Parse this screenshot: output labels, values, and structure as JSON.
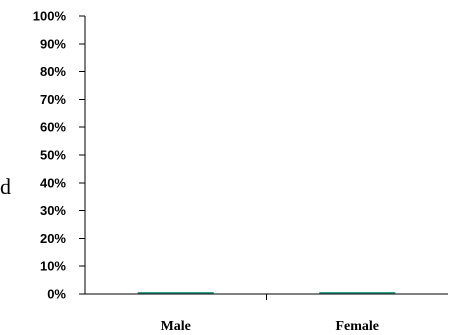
{
  "side_glyph": "d",
  "chart_data": {
    "type": "bar",
    "categories": [
      "Male",
      "Female"
    ],
    "values": [
      0,
      0
    ],
    "ylim": [
      0,
      100
    ],
    "y_ticks": [
      "0%",
      "10%",
      "20%",
      "30%",
      "40%",
      "50%",
      "60%",
      "70%",
      "80%",
      "90%",
      "100%"
    ],
    "bar_color": "#2e9e86",
    "grid": false,
    "legend": "none",
    "title": "",
    "xlabel": "",
    "ylabel": ""
  }
}
